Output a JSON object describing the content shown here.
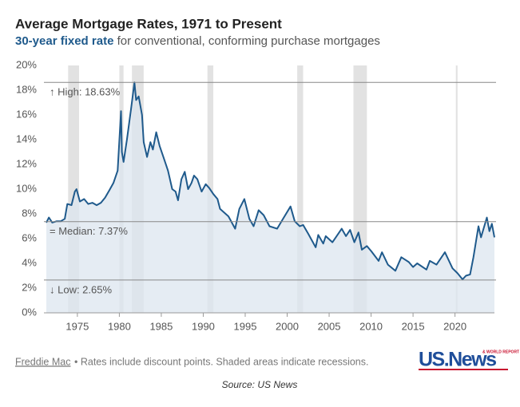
{
  "chart_data": {
    "type": "line",
    "title": "Average Mortgage Rates, 1971 to Present",
    "subtitle_bold": "30-year fixed rate",
    "subtitle": "for conventional, conforming purchase mortgages",
    "x": [
      1971.3,
      1971.6,
      1972.0,
      1972.5,
      1973.0,
      1973.5,
      1973.8,
      1974.3,
      1974.7,
      1974.9,
      1975.3,
      1975.8,
      1976.3,
      1976.8,
      1977.3,
      1977.8,
      1978.3,
      1978.8,
      1979.3,
      1979.8,
      1980.2,
      1980.3,
      1980.5,
      1980.9,
      1981.4,
      1981.8,
      1982.0,
      1982.3,
      1982.7,
      1982.9,
      1983.3,
      1983.7,
      1984.0,
      1984.4,
      1984.8,
      1985.3,
      1985.8,
      1986.3,
      1986.7,
      1987.0,
      1987.4,
      1987.8,
      1988.2,
      1988.6,
      1988.9,
      1989.3,
      1989.8,
      1990.3,
      1990.7,
      1991.2,
      1991.7,
      1992.0,
      1992.5,
      1993.0,
      1993.8,
      1994.3,
      1994.9,
      1995.5,
      1996.0,
      1996.6,
      1997.2,
      1997.9,
      1998.8,
      1999.5,
      2000.4,
      2000.9,
      2001.5,
      2001.9,
      2002.5,
      2003.4,
      2003.7,
      2004.3,
      2004.6,
      2005.4,
      2006.5,
      2007.0,
      2007.5,
      2008.0,
      2008.5,
      2008.9,
      2009.5,
      2010.0,
      2010.9,
      2011.3,
      2012.0,
      2012.9,
      2013.6,
      2014.5,
      2015.0,
      2015.5,
      2016.6,
      2017.0,
      2017.8,
      2018.8,
      2019.7,
      2020.3,
      2020.9,
      2021.3,
      2021.8,
      2022.2,
      2022.8,
      2023.1,
      2023.8,
      2024.1,
      2024.4,
      2024.7
    ],
    "values": [
      7.3,
      7.7,
      7.3,
      7.4,
      7.4,
      7.6,
      8.8,
      8.7,
      9.8,
      10.0,
      9.0,
      9.2,
      8.8,
      8.9,
      8.7,
      8.9,
      9.3,
      9.9,
      10.5,
      11.5,
      16.3,
      13.0,
      12.2,
      14.0,
      16.5,
      18.63,
      17.2,
      17.5,
      16.0,
      13.8,
      12.6,
      13.8,
      13.2,
      14.6,
      13.5,
      12.5,
      11.5,
      10.0,
      9.8,
      9.1,
      10.8,
      11.4,
      10.0,
      10.5,
      11.1,
      10.8,
      9.8,
      10.4,
      10.1,
      9.6,
      9.2,
      8.4,
      8.1,
      7.8,
      6.8,
      8.4,
      9.2,
      7.6,
      7.0,
      8.3,
      7.9,
      7.0,
      6.8,
      7.6,
      8.6,
      7.4,
      7.0,
      7.1,
      6.4,
      5.3,
      6.3,
      5.6,
      6.2,
      5.7,
      6.8,
      6.2,
      6.7,
      5.7,
      6.5,
      5.1,
      5.4,
      5.0,
      4.2,
      4.9,
      3.9,
      3.4,
      4.5,
      4.1,
      3.7,
      4.0,
      3.5,
      4.2,
      3.9,
      4.9,
      3.6,
      3.2,
      2.7,
      3.0,
      3.1,
      4.5,
      7.0,
      6.1,
      7.7,
      6.6,
      7.2,
      6.1
    ],
    "color": "#1f5a8c",
    "fill_color": "#dce6ef",
    "recession_color": "#e2e2e2",
    "recessions": [
      [
        1973.9,
        1975.2
      ],
      [
        1980.0,
        1980.5
      ],
      [
        1981.5,
        1982.9
      ],
      [
        1990.5,
        1991.2
      ],
      [
        2001.2,
        2001.9
      ],
      [
        2007.9,
        2009.5
      ],
      [
        2020.1,
        2020.3
      ]
    ],
    "reference_lines": [
      {
        "value": 18.63,
        "label": "↑ High: 18.63%"
      },
      {
        "value": 7.37,
        "label": "= Median: 7.37%"
      },
      {
        "value": 2.65,
        "label": "↓ Low: 2.65%"
      }
    ],
    "xlim": [
      1971.3,
      2024.7
    ],
    "xticks": [
      1975,
      1980,
      1985,
      1990,
      1995,
      2000,
      2005,
      2010,
      2015,
      2020
    ],
    "ylim": [
      0,
      20
    ],
    "yticks": [
      {
        "value": 0,
        "label": "0%"
      },
      {
        "value": 2,
        "label": "2%"
      },
      {
        "value": 4,
        "label": "4%"
      },
      {
        "value": 6,
        "label": "6%"
      },
      {
        "value": 8,
        "label": "8%"
      },
      {
        "value": 10,
        "label": "10%"
      },
      {
        "value": 12,
        "label": "12%"
      },
      {
        "value": 14,
        "label": "14%"
      },
      {
        "value": 16,
        "label": "16%"
      },
      {
        "value": 18,
        "label": "18%"
      },
      {
        "value": 20,
        "label": "20%"
      }
    ],
    "source_link": "Freddie Mac",
    "note": "• Rates include discount points. Shaded areas indicate recessions.",
    "caption": "Source: US News",
    "logo": "US.News",
    "logo_small": "& WORLD REPORT"
  }
}
